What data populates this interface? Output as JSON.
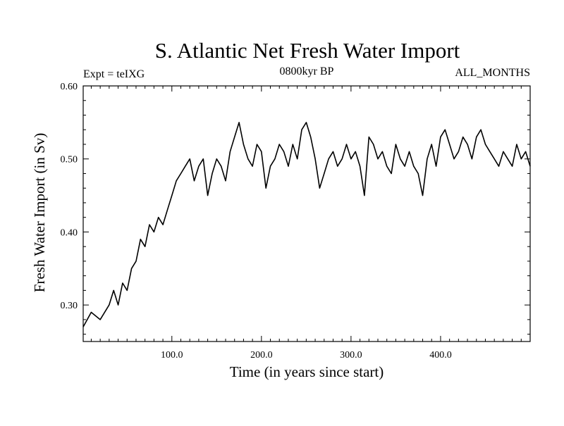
{
  "chart_data": {
    "type": "line",
    "title": "S. Atlantic Net Fresh Water Import",
    "subtitle_left": "Expt = teIXG",
    "subtitle_center": "0800kyr BP",
    "subtitle_right": "ALL_MONTHS",
    "xlabel": "Time (in years since start)",
    "ylabel": "Fresh Water Import (in Sv)",
    "xlim": [
      1,
      500
    ],
    "ylim": [
      0.25,
      0.6
    ],
    "x_ticks": [
      100,
      200,
      300,
      400
    ],
    "x_tick_labels": [
      "100.0",
      "200.0",
      "300.0",
      "400.0"
    ],
    "y_ticks": [
      0.3,
      0.4,
      0.5,
      0.6
    ],
    "y_tick_labels": [
      "0.30",
      "0.40",
      "0.50",
      "0.60"
    ],
    "grid": false,
    "legend": "none",
    "series": [
      {
        "name": "Fresh Water Import",
        "color": "#000000",
        "x": [
          1,
          10,
          20,
          30,
          35,
          40,
          45,
          50,
          55,
          60,
          65,
          70,
          75,
          80,
          85,
          90,
          95,
          100,
          105,
          110,
          115,
          120,
          125,
          130,
          135,
          140,
          145,
          150,
          155,
          160,
          165,
          170,
          175,
          180,
          185,
          190,
          195,
          200,
          205,
          210,
          215,
          220,
          225,
          230,
          235,
          240,
          245,
          250,
          255,
          260,
          265,
          270,
          275,
          280,
          285,
          290,
          295,
          300,
          305,
          310,
          315,
          320,
          325,
          330,
          335,
          340,
          345,
          350,
          355,
          360,
          365,
          370,
          375,
          380,
          385,
          390,
          395,
          400,
          405,
          410,
          415,
          420,
          425,
          430,
          435,
          440,
          445,
          450,
          455,
          460,
          465,
          470,
          475,
          480,
          485,
          490,
          495,
          500
        ],
        "values": [
          0.27,
          0.29,
          0.28,
          0.3,
          0.32,
          0.3,
          0.33,
          0.32,
          0.35,
          0.36,
          0.39,
          0.38,
          0.41,
          0.4,
          0.42,
          0.41,
          0.43,
          0.45,
          0.47,
          0.48,
          0.49,
          0.5,
          0.47,
          0.49,
          0.5,
          0.45,
          0.48,
          0.5,
          0.49,
          0.47,
          0.51,
          0.53,
          0.55,
          0.52,
          0.5,
          0.49,
          0.52,
          0.51,
          0.46,
          0.49,
          0.5,
          0.52,
          0.51,
          0.49,
          0.52,
          0.5,
          0.54,
          0.55,
          0.53,
          0.5,
          0.46,
          0.48,
          0.5,
          0.51,
          0.49,
          0.5,
          0.52,
          0.5,
          0.51,
          0.49,
          0.45,
          0.53,
          0.52,
          0.5,
          0.51,
          0.49,
          0.48,
          0.52,
          0.5,
          0.49,
          0.51,
          0.49,
          0.48,
          0.45,
          0.5,
          0.52,
          0.49,
          0.53,
          0.54,
          0.52,
          0.5,
          0.51,
          0.53,
          0.52,
          0.5,
          0.53,
          0.54,
          0.52,
          0.51,
          0.5,
          0.49,
          0.51,
          0.5,
          0.49,
          0.52,
          0.5,
          0.51,
          0.49
        ]
      }
    ]
  }
}
